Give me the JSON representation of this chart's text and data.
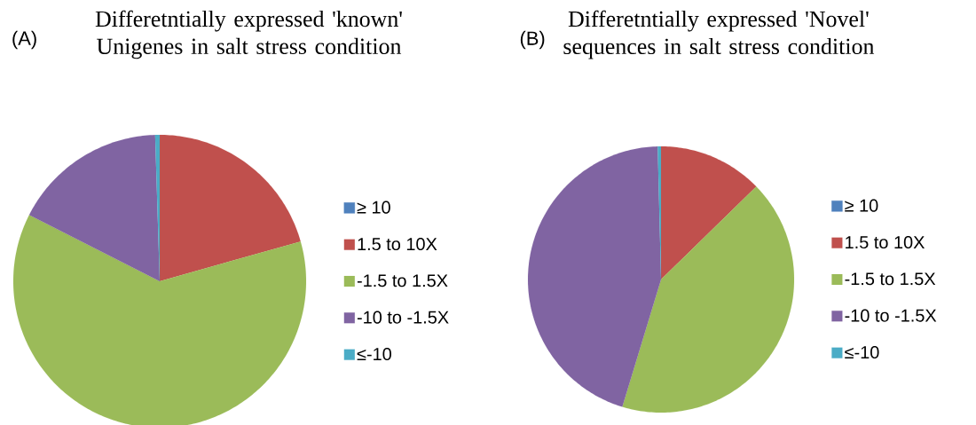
{
  "chart_data": [
    {
      "type": "pie",
      "title": "Differetntially expressed 'known' Unigenes in salt stress condition",
      "annotations": [
        "(A)"
      ],
      "categories": [
        "≥ 10",
        "1.5 to 10X",
        "-1.5 to 1.5X",
        "-10 to -1.5X",
        "≤-10"
      ],
      "values": [
        null,
        20.6,
        61.8,
        17.0,
        0.5
      ],
      "colors": [
        "#4f81bd",
        "#c0504d",
        "#9bbb59",
        "#8064a2",
        "#4bacc6"
      ],
      "legend": "right"
    },
    {
      "type": "pie",
      "title": "Differetntially expressed 'Novel' sequences in salt stress condition",
      "annotations": [
        "(B)"
      ],
      "categories": [
        "≥ 10",
        "1.5 to 10X",
        "-1.5 to 1.5X",
        "-10 to -1.5X",
        "≤-10"
      ],
      "values": [
        null,
        12.7,
        42.0,
        44.9,
        0.4
      ],
      "colors": [
        "#4f81bd",
        "#c0504d",
        "#9bbb59",
        "#8064a2",
        "#4bacc6"
      ],
      "legend": "right"
    }
  ]
}
